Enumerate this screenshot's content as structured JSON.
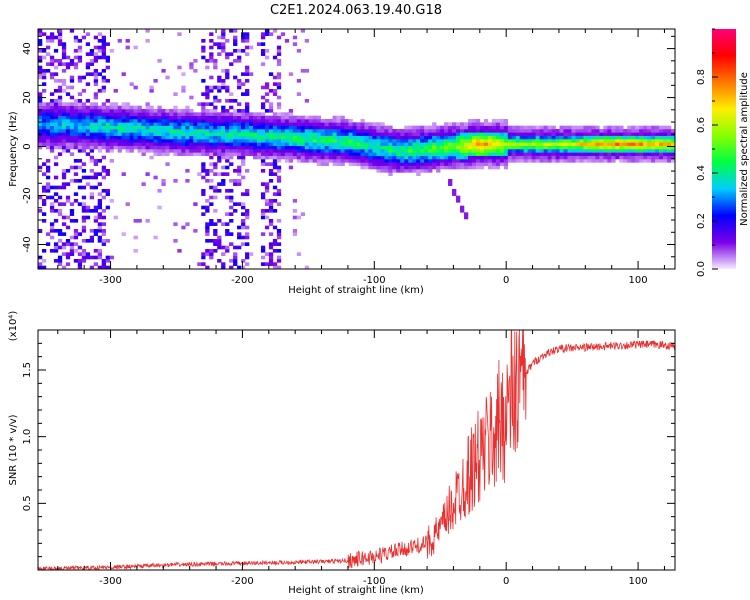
{
  "figure": {
    "title": "C2E1.2024.063.19.40.G18"
  },
  "colors": {
    "snr_line": "#e83030",
    "axis": "#000000",
    "colorbar_stops": [
      "#f6eaff",
      "#7a00e6",
      "#0000ff",
      "#00ccff",
      "#00ff44",
      "#88ff00",
      "#ffee00",
      "#ff7700",
      "#ff0000",
      "#ff0077"
    ]
  },
  "chart_data": [
    {
      "type": "heatmap",
      "title": "",
      "xlabel": "Height of straight line (km)",
      "ylabel": "Frequency (Hz)",
      "xlim": [
        -355,
        128
      ],
      "ylim": [
        -50,
        48
      ],
      "xticks": [
        -300,
        -200,
        -100,
        0,
        100
      ],
      "xtick_labels": [
        "-300",
        "-200",
        "-100",
        "0",
        "100"
      ],
      "yticks": [
        -40,
        -20,
        0,
        20,
        40
      ],
      "ytick_labels": [
        "-40",
        "-20",
        "0",
        "20",
        "40"
      ],
      "colorbar": {
        "label": "Normalized spectral amplitude",
        "range": [
          0,
          1
        ],
        "ticks": [
          0.0,
          0.2,
          0.4,
          0.6,
          0.8
        ],
        "tick_labels": [
          "0.0",
          "0.2",
          "0.4",
          "0.6",
          "0.8"
        ]
      },
      "ridge": {
        "x": [
          -340,
          -300,
          -250,
          -200,
          -150,
          -120,
          -100,
          -80,
          -60,
          -40,
          -20,
          0,
          40,
          80,
          128
        ],
        "freq": [
          9,
          8,
          6,
          5,
          3,
          2,
          0,
          -2,
          -1,
          0,
          1,
          1,
          1,
          1,
          1
        ],
        "amplitude": [
          0.35,
          0.4,
          0.4,
          0.4,
          0.45,
          0.45,
          0.4,
          0.45,
          0.5,
          0.55,
          0.8,
          0.6,
          0.6,
          0.8,
          0.7
        ]
      },
      "faint_trace": {
        "x": [
          -45,
          -38,
          -30
        ],
        "freq": [
          -12,
          -20,
          -29
        ]
      }
    },
    {
      "type": "line",
      "title": "",
      "xlabel": "Height of straight line (km)",
      "ylabel": "SNR (10 * v/v)",
      "y_multiplier": "(x10⁴)",
      "xlim": [
        -355,
        128
      ],
      "ylim": [
        0,
        1.8
      ],
      "xticks": [
        -300,
        -200,
        -100,
        0,
        100
      ],
      "xtick_labels": [
        "-300",
        "-200",
        "-100",
        "0",
        "100"
      ],
      "yticks": [
        0.5,
        1.0,
        1.5
      ],
      "ytick_labels": [
        "0.5",
        "1.0",
        "1.5"
      ],
      "series": [
        {
          "x": [
            -355,
            -300,
            -250,
            -200,
            -150,
            -120,
            -100,
            -80,
            -60,
            -50,
            -40,
            -30,
            -20,
            -10,
            0,
            10,
            20,
            30,
            40,
            60,
            80,
            100,
            115,
            128
          ],
          "y": [
            0.01,
            0.02,
            0.04,
            0.05,
            0.06,
            0.07,
            0.1,
            0.15,
            0.2,
            0.3,
            0.5,
            0.7,
            0.85,
            1.0,
            1.2,
            1.4,
            1.55,
            1.62,
            1.66,
            1.67,
            1.68,
            1.69,
            1.69,
            1.68
          ]
        }
      ]
    }
  ]
}
